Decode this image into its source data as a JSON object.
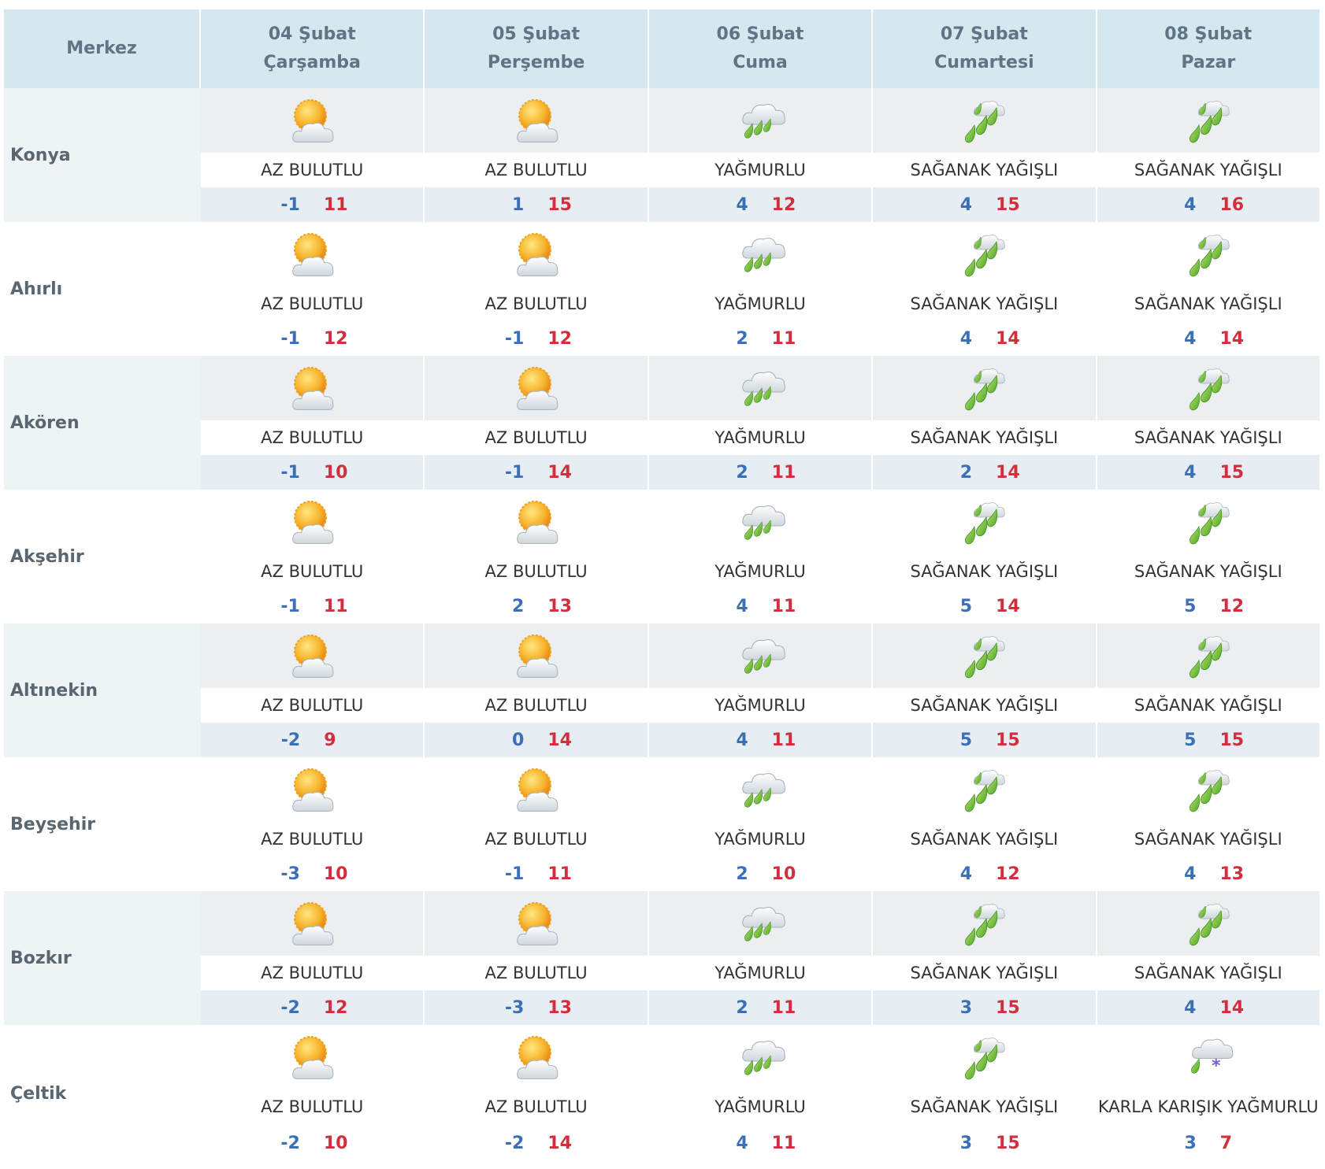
{
  "header": {
    "first": "Merkez",
    "days": [
      {
        "date": "04 Şubat",
        "weekday": "Çarşamba"
      },
      {
        "date": "05 Şubat",
        "weekday": "Perşembe"
      },
      {
        "date": "06 Şubat",
        "weekday": "Cuma"
      },
      {
        "date": "07 Şubat",
        "weekday": "Cumartesi"
      },
      {
        "date": "08 Şubat",
        "weekday": "Pazar"
      }
    ]
  },
  "rows": [
    {
      "name": "Konya",
      "days": [
        {
          "condition": "AZ BULUTLU",
          "min": -1,
          "max": 11
        },
        {
          "condition": "AZ BULUTLU",
          "min": 1,
          "max": 15
        },
        {
          "condition": "YAĞMURLU",
          "min": 4,
          "max": 12
        },
        {
          "condition": "SAĞANAK YAĞIŞLI",
          "min": 4,
          "max": 15
        },
        {
          "condition": "SAĞANAK YAĞIŞLI",
          "min": 4,
          "max": 16
        }
      ]
    },
    {
      "name": "Ahırlı",
      "days": [
        {
          "condition": "AZ BULUTLU",
          "min": -1,
          "max": 12
        },
        {
          "condition": "AZ BULUTLU",
          "min": -1,
          "max": 12
        },
        {
          "condition": "YAĞMURLU",
          "min": 2,
          "max": 11
        },
        {
          "condition": "SAĞANAK YAĞIŞLI",
          "min": 4,
          "max": 14
        },
        {
          "condition": "SAĞANAK YAĞIŞLI",
          "min": 4,
          "max": 14
        }
      ]
    },
    {
      "name": "Akören",
      "days": [
        {
          "condition": "AZ BULUTLU",
          "min": -1,
          "max": 10
        },
        {
          "condition": "AZ BULUTLU",
          "min": -1,
          "max": 14
        },
        {
          "condition": "YAĞMURLU",
          "min": 2,
          "max": 11
        },
        {
          "condition": "SAĞANAK YAĞIŞLI",
          "min": 2,
          "max": 14
        },
        {
          "condition": "SAĞANAK YAĞIŞLI",
          "min": 4,
          "max": 15
        }
      ]
    },
    {
      "name": "Akşehir",
      "days": [
        {
          "condition": "AZ BULUTLU",
          "min": -1,
          "max": 11
        },
        {
          "condition": "AZ BULUTLU",
          "min": 2,
          "max": 13
        },
        {
          "condition": "YAĞMURLU",
          "min": 4,
          "max": 11
        },
        {
          "condition": "SAĞANAK YAĞIŞLI",
          "min": 5,
          "max": 14
        },
        {
          "condition": "SAĞANAK YAĞIŞLI",
          "min": 5,
          "max": 12
        }
      ]
    },
    {
      "name": "Altınekin",
      "days": [
        {
          "condition": "AZ BULUTLU",
          "min": -2,
          "max": 9
        },
        {
          "condition": "AZ BULUTLU",
          "min": 0,
          "max": 14
        },
        {
          "condition": "YAĞMURLU",
          "min": 4,
          "max": 11
        },
        {
          "condition": "SAĞANAK YAĞIŞLI",
          "min": 5,
          "max": 15
        },
        {
          "condition": "SAĞANAK YAĞIŞLI",
          "min": 5,
          "max": 15
        }
      ]
    },
    {
      "name": "Beyşehir",
      "days": [
        {
          "condition": "AZ BULUTLU",
          "min": -3,
          "max": 10
        },
        {
          "condition": "AZ BULUTLU",
          "min": -1,
          "max": 11
        },
        {
          "condition": "YAĞMURLU",
          "min": 2,
          "max": 10
        },
        {
          "condition": "SAĞANAK YAĞIŞLI",
          "min": 4,
          "max": 12
        },
        {
          "condition": "SAĞANAK YAĞIŞLI",
          "min": 4,
          "max": 13
        }
      ]
    },
    {
      "name": "Bozkır",
      "days": [
        {
          "condition": "AZ BULUTLU",
          "min": -2,
          "max": 12
        },
        {
          "condition": "AZ BULUTLU",
          "min": -3,
          "max": 13
        },
        {
          "condition": "YAĞMURLU",
          "min": 2,
          "max": 11
        },
        {
          "condition": "SAĞANAK YAĞIŞLI",
          "min": 3,
          "max": 15
        },
        {
          "condition": "SAĞANAK YAĞIŞLI",
          "min": 4,
          "max": 14
        }
      ]
    },
    {
      "name": "Çeltik",
      "days": [
        {
          "condition": "AZ BULUTLU",
          "min": -2,
          "max": 10
        },
        {
          "condition": "AZ BULUTLU",
          "min": -2,
          "max": 14
        },
        {
          "condition": "YAĞMURLU",
          "min": 4,
          "max": 11
        },
        {
          "condition": "SAĞANAK YAĞIŞLI",
          "min": 3,
          "max": 15
        },
        {
          "condition": "KARLA KARIŞIK YAĞMURLU",
          "min": 3,
          "max": 7
        }
      ]
    }
  ]
}
